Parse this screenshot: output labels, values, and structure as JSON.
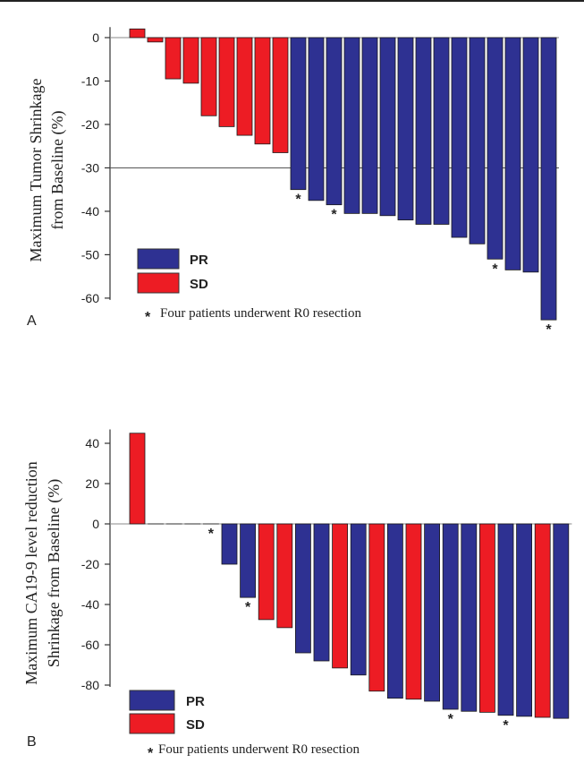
{
  "colors": {
    "PR": "#2e3192",
    "SD": "#ed1c24",
    "axis": "#333333"
  },
  "chart_data": [
    {
      "type": "bar",
      "panel_label": "A",
      "ylabel_lines": [
        "Maximum Tumor Shrinkage",
        "from Baseline (%)"
      ],
      "yticks": [
        "0",
        "-10",
        "-20",
        "-30",
        "-40",
        "-50",
        "-60"
      ],
      "ylim": [
        -66,
        2
      ],
      "threshold": -30,
      "legend": [
        {
          "key": "PR",
          "label": "PR"
        },
        {
          "key": "SD",
          "label": "SD"
        }
      ],
      "note_star": "*",
      "note": "Four patients underwent R0 resection",
      "bars": [
        {
          "value": 2,
          "group": "SD",
          "star": false
        },
        {
          "value": -1,
          "group": "SD",
          "star": false
        },
        {
          "value": -9.5,
          "group": "SD",
          "star": false
        },
        {
          "value": -10.5,
          "group": "SD",
          "star": false
        },
        {
          "value": -18,
          "group": "SD",
          "star": false
        },
        {
          "value": -20.5,
          "group": "SD",
          "star": false
        },
        {
          "value": -22.5,
          "group": "SD",
          "star": false
        },
        {
          "value": -24.5,
          "group": "SD",
          "star": false
        },
        {
          "value": -26.5,
          "group": "SD",
          "star": false
        },
        {
          "value": -35,
          "group": "PR",
          "star": true
        },
        {
          "value": -37.5,
          "group": "PR",
          "star": false
        },
        {
          "value": -38.5,
          "group": "PR",
          "star": true
        },
        {
          "value": -40.5,
          "group": "PR",
          "star": false
        },
        {
          "value": -40.5,
          "group": "PR",
          "star": false
        },
        {
          "value": -41,
          "group": "PR",
          "star": false
        },
        {
          "value": -42,
          "group": "PR",
          "star": false
        },
        {
          "value": -43,
          "group": "PR",
          "star": false
        },
        {
          "value": -43,
          "group": "PR",
          "star": false
        },
        {
          "value": -46,
          "group": "PR",
          "star": false
        },
        {
          "value": -47.5,
          "group": "PR",
          "star": false
        },
        {
          "value": -51,
          "group": "PR",
          "star": true
        },
        {
          "value": -53.5,
          "group": "PR",
          "star": false
        },
        {
          "value": -54,
          "group": "PR",
          "star": false
        },
        {
          "value": -65,
          "group": "PR",
          "star": true
        }
      ]
    },
    {
      "type": "bar",
      "panel_label": "B",
      "ylabel_lines": [
        "Maximum CA19-9 level reduction",
        "Shrinkage from Baseline (%)"
      ],
      "yticks": [
        "40",
        "20",
        "0",
        "-20",
        "-40",
        "-60",
        "-80"
      ],
      "ylim": [
        -100,
        46
      ],
      "legend": [
        {
          "key": "PR",
          "label": "PR"
        },
        {
          "key": "SD",
          "label": "SD"
        }
      ],
      "note_star": "*",
      "note": "Four patients underwent R0 resection",
      "bars": [
        {
          "value": 45,
          "group": "SD",
          "star": false
        },
        {
          "value": 0,
          "group": "SD",
          "star": false
        },
        {
          "value": 0,
          "group": "SD",
          "star": false
        },
        {
          "value": 0,
          "group": "SD",
          "star": false
        },
        {
          "value": 0,
          "group": "SD",
          "star": true
        },
        {
          "value": -20,
          "group": "PR",
          "star": false
        },
        {
          "value": -36.5,
          "group": "PR",
          "star": true
        },
        {
          "value": -47.5,
          "group": "SD",
          "star": false
        },
        {
          "value": -51.5,
          "group": "SD",
          "star": false
        },
        {
          "value": -64,
          "group": "PR",
          "star": false
        },
        {
          "value": -68,
          "group": "PR",
          "star": false
        },
        {
          "value": -71.5,
          "group": "SD",
          "star": false
        },
        {
          "value": -75,
          "group": "PR",
          "star": false
        },
        {
          "value": -83,
          "group": "SD",
          "star": false
        },
        {
          "value": -86.5,
          "group": "PR",
          "star": false
        },
        {
          "value": -87,
          "group": "SD",
          "star": false
        },
        {
          "value": -88,
          "group": "PR",
          "star": false
        },
        {
          "value": -92,
          "group": "PR",
          "star": true
        },
        {
          "value": -93,
          "group": "PR",
          "star": false
        },
        {
          "value": -93.5,
          "group": "SD",
          "star": false
        },
        {
          "value": -95,
          "group": "PR",
          "star": true
        },
        {
          "value": -95.5,
          "group": "PR",
          "star": false
        },
        {
          "value": -96,
          "group": "SD",
          "star": false
        },
        {
          "value": -96.5,
          "group": "PR",
          "star": false
        }
      ]
    }
  ]
}
